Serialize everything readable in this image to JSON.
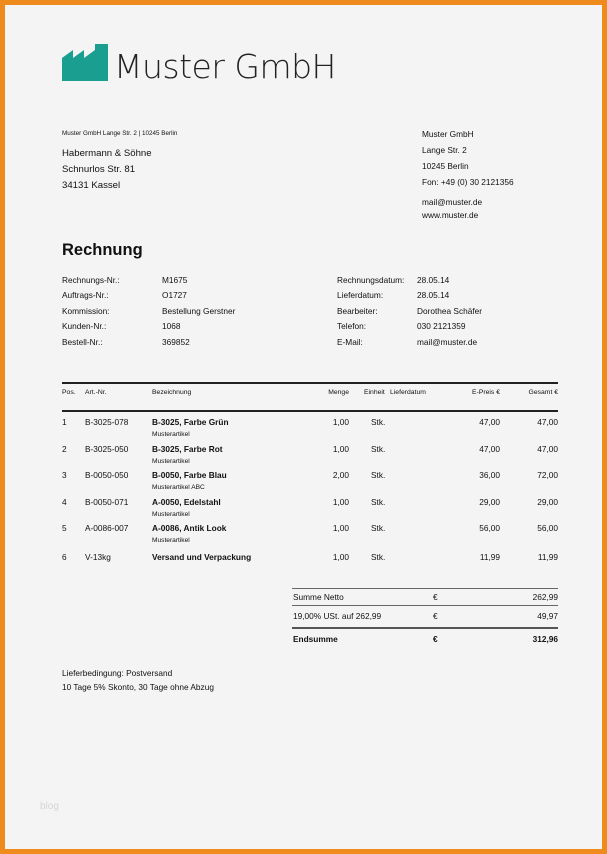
{
  "brand": {
    "name": "Muster GmbH",
    "logo_color": "#1a9e8f",
    "border_color": "#ef8a1c"
  },
  "sender_line": "Muster GmbH Lange Str. 2 | 10245 Berlin",
  "recipient": [
    "Habermann & Söhne",
    "Schnurlos Str. 81",
    "34131 Kassel"
  ],
  "company": {
    "lines": [
      "Muster GmbH",
      "Lange Str. 2",
      "10245 Berlin",
      "Fon: +49 (0) 30 2121356"
    ],
    "mail": "mail@muster.de",
    "web": "www.muster.de"
  },
  "title": "Rechnung",
  "info_left": [
    {
      "label": "Rechnungs-Nr.:",
      "value": "M1675"
    },
    {
      "label": "Auftrags-Nr.:",
      "value": "O1727"
    },
    {
      "label": "Kommission:",
      "value": "Bestellung Gerstner"
    },
    {
      "label": "Kunden-Nr.:",
      "value": "1068"
    },
    {
      "label": "Bestell-Nr.:",
      "value": "369852"
    }
  ],
  "info_right": [
    {
      "label": "Rechnungsdatum:",
      "value": "28.05.14"
    },
    {
      "label": "Lieferdatum:",
      "value": "28.05.14"
    },
    {
      "label": "Bearbeiter:",
      "value": "Dorothea Schäfer"
    },
    {
      "label": "Telefon:",
      "value": "030 2121359"
    },
    {
      "label": "E-Mail:",
      "value": "mail@muster.de"
    }
  ],
  "table": {
    "headers": {
      "pos": "Pos.",
      "art": "Art.-Nr.",
      "bez": "Bezeichnung",
      "menge": "Menge",
      "einheit": "Einheit",
      "lieferdatum": "Lieferdatum",
      "epreis": "E-Preis €",
      "gesamt": "Gesamt €"
    },
    "rows": [
      {
        "pos": "1",
        "art": "B-3025-078",
        "bez": "B-3025, Farbe Grün",
        "sub": "Musterartikel",
        "menge": "1,00",
        "einheit": "Stk.",
        "epreis": "47,00",
        "gesamt": "47,00"
      },
      {
        "pos": "2",
        "art": "B-3025-050",
        "bez": "B-3025, Farbe Rot",
        "sub": "Musterartikel",
        "menge": "1,00",
        "einheit": "Stk.",
        "epreis": "47,00",
        "gesamt": "47,00"
      },
      {
        "pos": "3",
        "art": "B-0050-050",
        "bez": "B-0050, Farbe Blau",
        "sub": "Musterartikel ABC",
        "menge": "2,00",
        "einheit": "Stk.",
        "epreis": "36,00",
        "gesamt": "72,00"
      },
      {
        "pos": "4",
        "art": "B-0050-071",
        "bez": "A-0050, Edelstahl",
        "sub": "Musterartikel",
        "menge": "1,00",
        "einheit": "Stk.",
        "epreis": "29,00",
        "gesamt": "29,00"
      },
      {
        "pos": "5",
        "art": "A-0086-007",
        "bez": "A-0086, Antik Look",
        "sub": "Musterartikel",
        "menge": "1,00",
        "einheit": "Stk.",
        "epreis": "56,00",
        "gesamt": "56,00"
      },
      {
        "pos": "6",
        "art": "V-13kg",
        "bez": "Versand und Verpackung",
        "menge": "1,00",
        "einheit": "Stk.",
        "epreis": "11,99",
        "gesamt": "11,99"
      }
    ]
  },
  "totals": [
    {
      "label": "Summe Netto",
      "cur": "€",
      "value": "262,99"
    },
    {
      "label": "19,00% USt. auf 262,99",
      "cur": "€",
      "value": "49,97"
    },
    {
      "label": "Endsumme",
      "cur": "€",
      "value": "312,96"
    }
  ],
  "footer": [
    "Lieferbedingung: Postversand",
    "10 Tage 5% Skonto, 30 Tage ohne Abzug"
  ],
  "watermark": "blog"
}
